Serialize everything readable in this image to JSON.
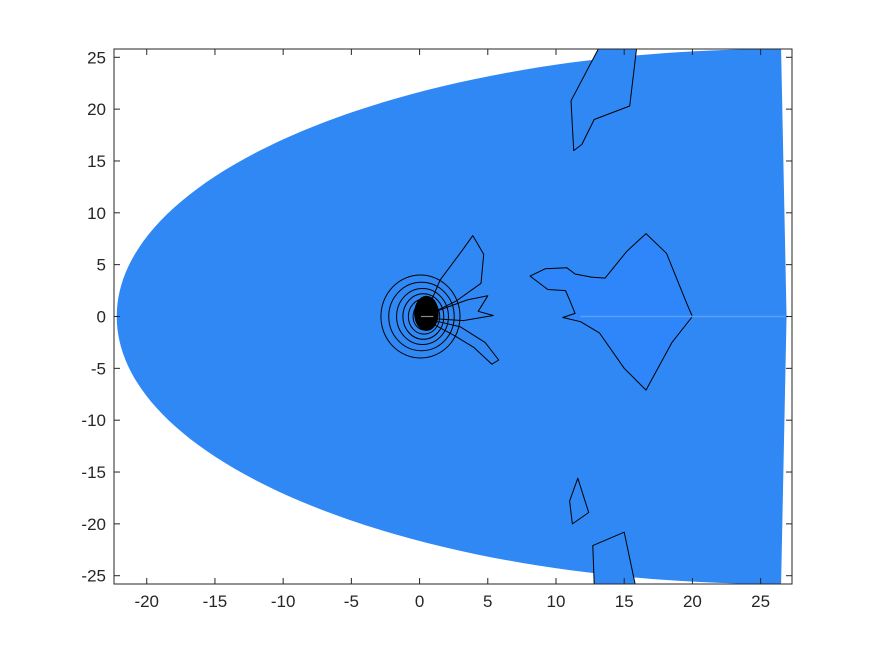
{
  "chart_data": {
    "type": "heatmap",
    "title": "",
    "xlabel": "",
    "ylabel": "",
    "xlim": [
      -22.4,
      27.3
    ],
    "ylim": [
      -25.8,
      25.8
    ],
    "x_ticks": [
      -20,
      -15,
      -10,
      -5,
      0,
      5,
      10,
      15,
      20,
      25
    ],
    "y_ticks": [
      25,
      20,
      15,
      10,
      5,
      0,
      -5,
      -10,
      -15,
      -20,
      -25
    ],
    "grid": false,
    "legend": "none",
    "colors": {
      "field_fill": "#3088f5",
      "wake_region_fill": "#2f86fa",
      "contour_stroke": "#000000",
      "axis_color": "#262626",
      "background": "#ffffff"
    },
    "domain": {
      "shape": "half-ellipse front with right outflow boundary",
      "front_vertex": [
        -22.2,
        0
      ],
      "right_boundary_x": 26.5
    },
    "contours": {
      "near_body_center": [
        0.5,
        0
      ],
      "near_body_loops": [
        {
          "rx": 2.9,
          "ry": 4.0
        },
        {
          "rx": 2.4,
          "ry": 3.3
        },
        {
          "rx": 1.9,
          "ry": 2.7
        },
        {
          "rx": 1.5,
          "ry": 2.2
        },
        {
          "rx": 1.15,
          "ry": 1.7
        },
        {
          "rx": 0.85,
          "ry": 1.3
        },
        {
          "rx": 0.6,
          "ry": 0.95
        }
      ],
      "lobes": [
        [
          [
            0.7,
            1.0
          ],
          [
            1.5,
            3.5
          ],
          [
            3.2,
            6.5
          ],
          [
            3.9,
            7.8
          ],
          [
            4.7,
            6.0
          ],
          [
            4.5,
            3.2
          ],
          [
            2.7,
            1.5
          ],
          [
            1.3,
            0.6
          ]
        ],
        [
          [
            1.0,
            0.4
          ],
          [
            3.5,
            1.6
          ],
          [
            5.0,
            2.0
          ],
          [
            4.3,
            0.5
          ],
          [
            5.4,
            0.1
          ],
          [
            3.2,
            -0.4
          ],
          [
            1.0,
            -0.2
          ]
        ],
        [
          [
            0.8,
            -0.6
          ],
          [
            2.5,
            -1.8
          ],
          [
            4.0,
            -3.0
          ],
          [
            5.3,
            -4.6
          ],
          [
            5.8,
            -4.2
          ],
          [
            4.8,
            -2.5
          ],
          [
            3.0,
            -1.0
          ],
          [
            1.4,
            -0.5
          ]
        ],
        [
          [
            8.1,
            3.9
          ],
          [
            9.2,
            4.6
          ],
          [
            10.8,
            4.7
          ],
          [
            11.4,
            4.1
          ],
          [
            12.6,
            3.8
          ],
          [
            13.6,
            3.7
          ],
          [
            15.2,
            6.3
          ],
          [
            16.6,
            8.0
          ],
          [
            18.1,
            6.1
          ],
          [
            19.6,
            1.2
          ],
          [
            20.0,
            0
          ],
          [
            18.5,
            -2.5
          ],
          [
            16.6,
            -7.1
          ],
          [
            15.0,
            -5.0
          ],
          [
            13.2,
            -1.6
          ],
          [
            11.8,
            -0.5
          ],
          [
            10.5,
            -0.1
          ],
          [
            11.4,
            0.3
          ],
          [
            11.0,
            1.6
          ],
          [
            10.7,
            2.5
          ],
          [
            9.4,
            2.6
          ]
        ],
        [
          [
            13.1,
            25.8
          ],
          [
            11.1,
            20.8
          ],
          [
            11.3,
            16.0
          ],
          [
            11.9,
            16.6
          ],
          [
            12.8,
            19.0
          ],
          [
            15.4,
            20.3
          ],
          [
            15.9,
            25.8
          ]
        ],
        [
          [
            11.6,
            -15.6
          ],
          [
            12.4,
            -18.9
          ],
          [
            11.2,
            -20.0
          ],
          [
            11.0,
            -17.8
          ]
        ],
        [
          [
            12.8,
            -25.8
          ],
          [
            12.7,
            -22.1
          ],
          [
            15.0,
            -20.8
          ],
          [
            15.8,
            -25.8
          ]
        ]
      ],
      "wake_line_y": 0,
      "wake_line_x": [
        11.8,
        27.0
      ]
    }
  }
}
